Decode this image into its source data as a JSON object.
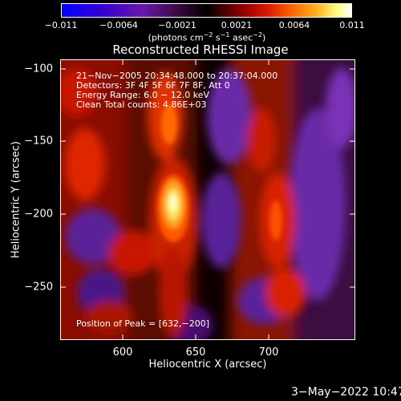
{
  "colorbar": {
    "ticks": [
      "−0.011",
      "−0.0064",
      "−0.0021",
      "0.0021",
      "0.0064",
      "0.011"
    ],
    "units_pre": "(photons cm",
    "units_exp1": "−2",
    "units_mid1": " s",
    "units_exp2": "−1",
    "units_mid2": " asec",
    "units_exp3": "−2",
    "units_post": ")"
  },
  "title": "Reconstructed RHESSI Image",
  "info": {
    "time": "21−Nov−2005 20:34:48.000 to 20:37:04.000",
    "detectors": "Detectors: 3F 4F 5F 6F 7F 8F, Att 0",
    "energy": "Energy Range: 6.0 − 12.0 keV",
    "clean": "Clean    Total counts: 4.86E+03",
    "peak": "Position of Peak = [632,−200]"
  },
  "axes": {
    "x_label": "Heliocentric X (arcsec)",
    "y_label": "Heliocentric Y (arcsec)",
    "x_ticks": [
      "600",
      "650",
      "700"
    ],
    "y_ticks": [
      "−100",
      "−150",
      "−200",
      "−250"
    ]
  },
  "footer": {
    "date": "3−May−2022 10:47"
  }
}
